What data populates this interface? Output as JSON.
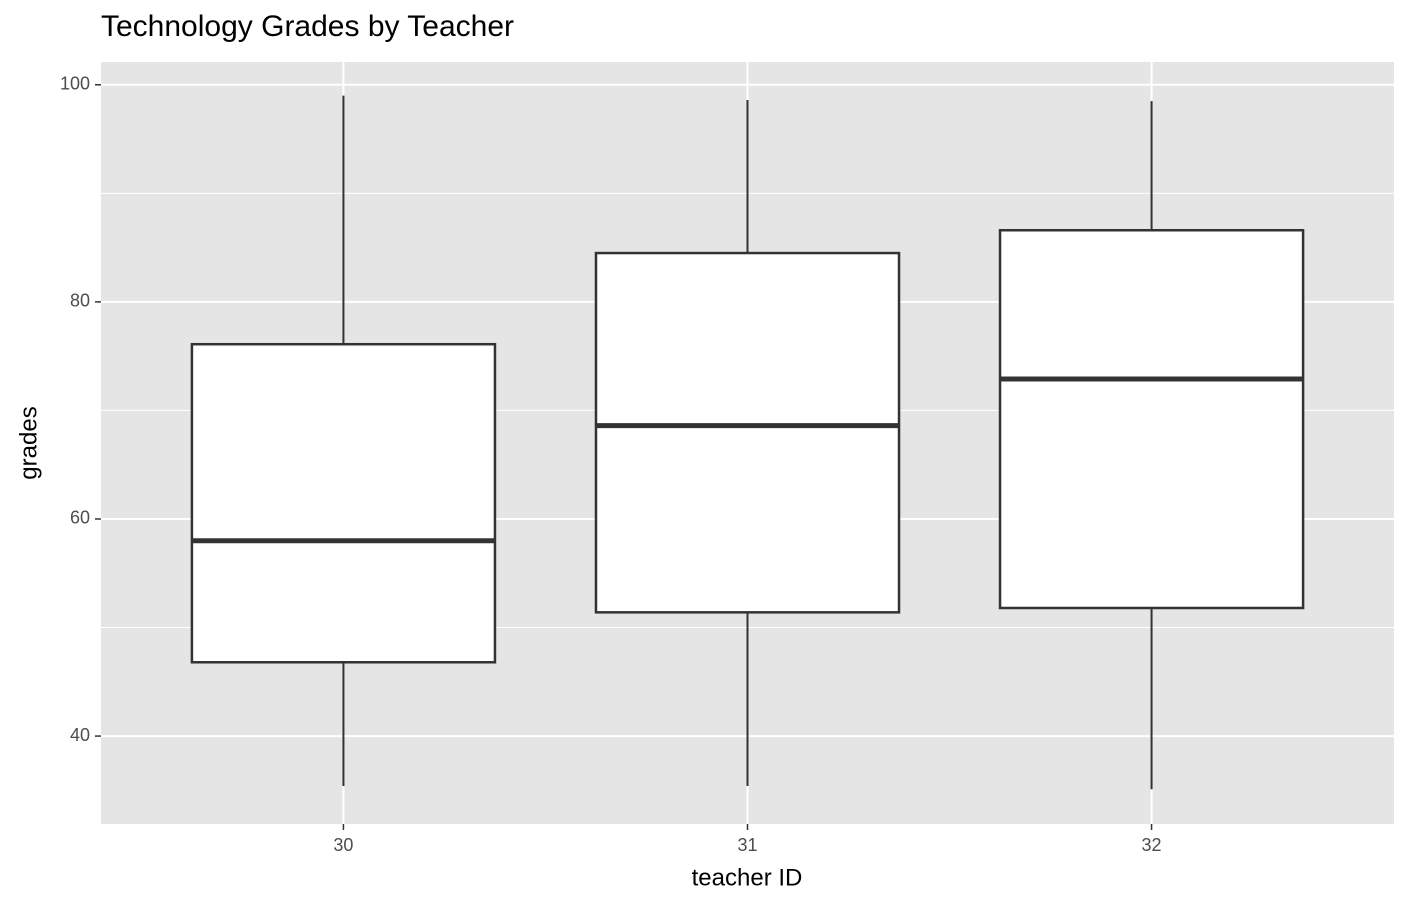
{
  "chart_data": {
    "type": "boxplot",
    "title": "Technology Grades by Teacher",
    "x_label": "teacher ID",
    "y_label": "grades",
    "categories": [
      "30",
      "31",
      "32"
    ],
    "boxes": [
      {
        "low": 35.4,
        "q1": 46.8,
        "median": 58.0,
        "q3": 76.1,
        "high": 99.0
      },
      {
        "low": 35.4,
        "q1": 51.4,
        "median": 68.6,
        "q3": 84.5,
        "high": 98.6
      },
      {
        "low": 35.1,
        "q1": 51.8,
        "median": 72.9,
        "q3": 86.6,
        "high": 98.5
      }
    ],
    "box_fill": "#ffffff",
    "box_stroke": "#333333",
    "ylim": [
      31.9,
      102.1
    ],
    "yticks": [
      40,
      60,
      80,
      100
    ],
    "minor_yticks": [
      50,
      70,
      90
    ],
    "grid": true,
    "panel_color": "#e5e5e5"
  }
}
